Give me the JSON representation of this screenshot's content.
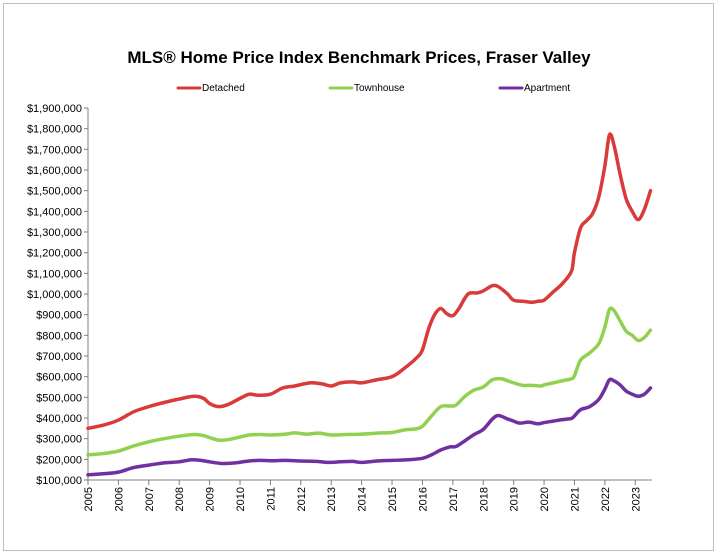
{
  "chart_data": {
    "type": "line",
    "title": "MLS® Home Price Index Benchmark Prices, Fraser Valley",
    "xlabel": "",
    "ylabel": "",
    "ylim": [
      100000,
      1900000
    ],
    "xlim": [
      2005.0,
      2023.55
    ],
    "x_ticks": [
      "2005",
      "2006",
      "2007",
      "2008",
      "2009",
      "2010",
      "2011",
      "2012",
      "2013",
      "2014",
      "2015",
      "2016",
      "2017",
      "2018",
      "2019",
      "2020",
      "2021",
      "2022",
      "2023"
    ],
    "y_ticks": [
      "$100,000",
      "$200,000",
      "$300,000",
      "$400,000",
      "$500,000",
      "$600,000",
      "$700,000",
      "$800,000",
      "$900,000",
      "$1,000,000",
      "$1,100,000",
      "$1,200,000",
      "$1,300,000",
      "$1,400,000",
      "$1,500,000",
      "$1,600,000",
      "$1,700,000",
      "$1,800,000",
      "$1,900,000"
    ],
    "grid": false,
    "legend_position": "top",
    "series": [
      {
        "name": "Detached",
        "color": "#d93a3a",
        "points": [
          [
            2005.0,
            350000
          ],
          [
            2005.5,
            365000
          ],
          [
            2006.0,
            390000
          ],
          [
            2006.5,
            430000
          ],
          [
            2007.0,
            455000
          ],
          [
            2007.5,
            475000
          ],
          [
            2008.0,
            492000
          ],
          [
            2008.5,
            505000
          ],
          [
            2008.8,
            495000
          ],
          [
            2009.0,
            470000
          ],
          [
            2009.3,
            455000
          ],
          [
            2009.6,
            465000
          ],
          [
            2010.0,
            495000
          ],
          [
            2010.3,
            515000
          ],
          [
            2010.6,
            510000
          ],
          [
            2011.0,
            515000
          ],
          [
            2011.4,
            545000
          ],
          [
            2011.8,
            555000
          ],
          [
            2012.3,
            570000
          ],
          [
            2012.7,
            565000
          ],
          [
            2013.0,
            555000
          ],
          [
            2013.3,
            570000
          ],
          [
            2013.7,
            575000
          ],
          [
            2014.0,
            570000
          ],
          [
            2014.5,
            585000
          ],
          [
            2015.0,
            600000
          ],
          [
            2015.4,
            640000
          ],
          [
            2015.8,
            690000
          ],
          [
            2016.0,
            730000
          ],
          [
            2016.2,
            830000
          ],
          [
            2016.4,
            900000
          ],
          [
            2016.6,
            930000
          ],
          [
            2016.8,
            905000
          ],
          [
            2017.0,
            895000
          ],
          [
            2017.2,
            930000
          ],
          [
            2017.5,
            1000000
          ],
          [
            2017.8,
            1005000
          ],
          [
            2018.0,
            1015000
          ],
          [
            2018.3,
            1040000
          ],
          [
            2018.5,
            1035000
          ],
          [
            2018.8,
            1000000
          ],
          [
            2019.0,
            970000
          ],
          [
            2019.3,
            965000
          ],
          [
            2019.6,
            960000
          ],
          [
            2019.8,
            965000
          ],
          [
            2020.0,
            970000
          ],
          [
            2020.3,
            1010000
          ],
          [
            2020.6,
            1050000
          ],
          [
            2020.9,
            1110000
          ],
          [
            2021.0,
            1200000
          ],
          [
            2021.2,
            1320000
          ],
          [
            2021.4,
            1355000
          ],
          [
            2021.6,
            1390000
          ],
          [
            2021.8,
            1470000
          ],
          [
            2022.0,
            1620000
          ],
          [
            2022.15,
            1770000
          ],
          [
            2022.3,
            1720000
          ],
          [
            2022.5,
            1580000
          ],
          [
            2022.7,
            1460000
          ],
          [
            2022.9,
            1400000
          ],
          [
            2023.1,
            1360000
          ],
          [
            2023.3,
            1410000
          ],
          [
            2023.5,
            1500000
          ]
        ]
      },
      {
        "name": "Townhouse",
        "color": "#92d050",
        "points": [
          [
            2005.0,
            222000
          ],
          [
            2005.5,
            228000
          ],
          [
            2006.0,
            240000
          ],
          [
            2006.5,
            265000
          ],
          [
            2007.0,
            285000
          ],
          [
            2007.5,
            300000
          ],
          [
            2008.0,
            312000
          ],
          [
            2008.5,
            320000
          ],
          [
            2008.8,
            315000
          ],
          [
            2009.0,
            305000
          ],
          [
            2009.3,
            293000
          ],
          [
            2009.6,
            295000
          ],
          [
            2010.0,
            308000
          ],
          [
            2010.3,
            318000
          ],
          [
            2010.7,
            320000
          ],
          [
            2011.0,
            318000
          ],
          [
            2011.5,
            322000
          ],
          [
            2011.8,
            328000
          ],
          [
            2012.2,
            322000
          ],
          [
            2012.6,
            327000
          ],
          [
            2013.0,
            318000
          ],
          [
            2013.5,
            320000
          ],
          [
            2014.0,
            322000
          ],
          [
            2014.5,
            327000
          ],
          [
            2015.0,
            330000
          ],
          [
            2015.4,
            342000
          ],
          [
            2015.8,
            348000
          ],
          [
            2016.0,
            360000
          ],
          [
            2016.3,
            410000
          ],
          [
            2016.6,
            455000
          ],
          [
            2016.9,
            458000
          ],
          [
            2017.1,
            462000
          ],
          [
            2017.4,
            505000
          ],
          [
            2017.7,
            535000
          ],
          [
            2018.0,
            550000
          ],
          [
            2018.3,
            585000
          ],
          [
            2018.6,
            590000
          ],
          [
            2018.8,
            580000
          ],
          [
            2019.0,
            570000
          ],
          [
            2019.3,
            558000
          ],
          [
            2019.6,
            558000
          ],
          [
            2019.9,
            555000
          ],
          [
            2020.0,
            560000
          ],
          [
            2020.3,
            570000
          ],
          [
            2020.6,
            580000
          ],
          [
            2020.9,
            590000
          ],
          [
            2021.0,
            605000
          ],
          [
            2021.2,
            680000
          ],
          [
            2021.5,
            715000
          ],
          [
            2021.8,
            760000
          ],
          [
            2022.0,
            840000
          ],
          [
            2022.15,
            925000
          ],
          [
            2022.3,
            920000
          ],
          [
            2022.5,
            870000
          ],
          [
            2022.7,
            820000
          ],
          [
            2022.9,
            800000
          ],
          [
            2023.1,
            775000
          ],
          [
            2023.3,
            790000
          ],
          [
            2023.5,
            825000
          ]
        ]
      },
      {
        "name": "Apartment",
        "color": "#7030a0",
        "points": [
          [
            2005.0,
            125000
          ],
          [
            2005.5,
            130000
          ],
          [
            2006.0,
            138000
          ],
          [
            2006.5,
            160000
          ],
          [
            2007.0,
            172000
          ],
          [
            2007.5,
            183000
          ],
          [
            2008.0,
            188000
          ],
          [
            2008.4,
            198000
          ],
          [
            2008.7,
            195000
          ],
          [
            2009.0,
            188000
          ],
          [
            2009.4,
            180000
          ],
          [
            2009.8,
            182000
          ],
          [
            2010.2,
            190000
          ],
          [
            2010.6,
            195000
          ],
          [
            2011.0,
            193000
          ],
          [
            2011.5,
            195000
          ],
          [
            2012.0,
            192000
          ],
          [
            2012.5,
            190000
          ],
          [
            2012.9,
            185000
          ],
          [
            2013.3,
            188000
          ],
          [
            2013.7,
            190000
          ],
          [
            2014.0,
            185000
          ],
          [
            2014.5,
            192000
          ],
          [
            2015.0,
            195000
          ],
          [
            2015.5,
            198000
          ],
          [
            2016.0,
            205000
          ],
          [
            2016.3,
            222000
          ],
          [
            2016.6,
            245000
          ],
          [
            2016.9,
            260000
          ],
          [
            2017.1,
            262000
          ],
          [
            2017.4,
            290000
          ],
          [
            2017.7,
            320000
          ],
          [
            2018.0,
            345000
          ],
          [
            2018.3,
            395000
          ],
          [
            2018.5,
            412000
          ],
          [
            2018.8,
            395000
          ],
          [
            2019.0,
            385000
          ],
          [
            2019.2,
            375000
          ],
          [
            2019.5,
            380000
          ],
          [
            2019.8,
            372000
          ],
          [
            2020.0,
            378000
          ],
          [
            2020.3,
            385000
          ],
          [
            2020.6,
            392000
          ],
          [
            2020.9,
            398000
          ],
          [
            2021.0,
            410000
          ],
          [
            2021.2,
            440000
          ],
          [
            2021.5,
            455000
          ],
          [
            2021.8,
            490000
          ],
          [
            2022.0,
            540000
          ],
          [
            2022.15,
            585000
          ],
          [
            2022.3,
            580000
          ],
          [
            2022.5,
            560000
          ],
          [
            2022.7,
            530000
          ],
          [
            2022.9,
            515000
          ],
          [
            2023.1,
            505000
          ],
          [
            2023.3,
            515000
          ],
          [
            2023.5,
            545000
          ]
        ]
      }
    ]
  }
}
